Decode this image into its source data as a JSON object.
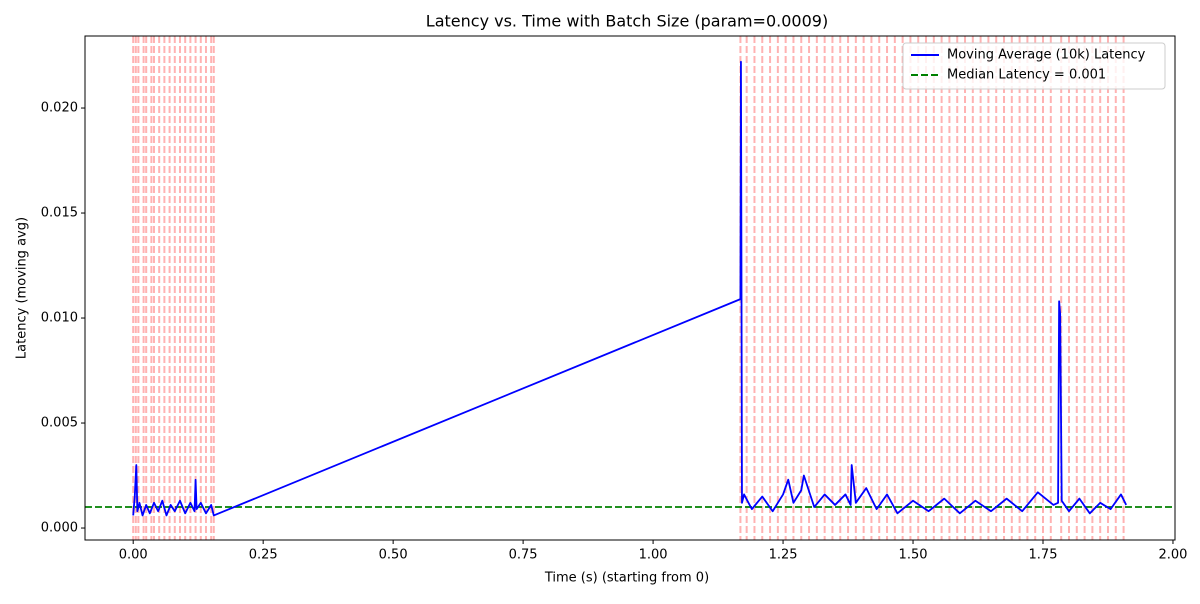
{
  "chart_data": {
    "type": "line",
    "title": "Latency vs. Time with Batch Size (param=0.0009)",
    "xlabel": "Time (s) (starting from 0)",
    "ylabel": "Latency (moving avg)",
    "xlim": [
      -0.0927,
      2.0039
    ],
    "ylim": [
      -0.00057,
      0.02343
    ],
    "xticks": [
      {
        "value": 0,
        "label": "0.00"
      },
      {
        "value": 0.25,
        "label": "0.25"
      },
      {
        "value": 0.5,
        "label": "0.50"
      },
      {
        "value": 0.75,
        "label": "0.75"
      },
      {
        "value": 1,
        "label": "1.00"
      },
      {
        "value": 1.25,
        "label": "1.25"
      },
      {
        "value": 1.5,
        "label": "1.50"
      },
      {
        "value": 1.75,
        "label": "1.75"
      },
      {
        "value": 2,
        "label": "2.00"
      }
    ],
    "yticks": [
      {
        "value": 0,
        "label": "0.000"
      },
      {
        "value": 0.005,
        "label": "0.005"
      },
      {
        "value": 0.01,
        "label": "0.010"
      },
      {
        "value": 0.015,
        "label": "0.015"
      },
      {
        "value": 0.02,
        "label": "0.020"
      }
    ],
    "legend": "upper right",
    "series": [
      {
        "name": "Moving Average (10k) Latency",
        "color": "#0000ff",
        "x": [
          0.0,
          0.003,
          0.006,
          0.008,
          0.012,
          0.018,
          0.025,
          0.032,
          0.04,
          0.048,
          0.056,
          0.064,
          0.072,
          0.08,
          0.09,
          0.1,
          0.11,
          0.118,
          0.12,
          0.122,
          0.13,
          0.14,
          0.15,
          0.155,
          1.168,
          1.169,
          1.17,
          1.171,
          1.175,
          1.19,
          1.21,
          1.23,
          1.25,
          1.26,
          1.27,
          1.285,
          1.29,
          1.31,
          1.33,
          1.35,
          1.37,
          1.38,
          1.382,
          1.39,
          1.41,
          1.43,
          1.45,
          1.47,
          1.5,
          1.53,
          1.56,
          1.59,
          1.62,
          1.65,
          1.68,
          1.71,
          1.74,
          1.77,
          1.779,
          1.781,
          1.783,
          1.786,
          1.8,
          1.82,
          1.84,
          1.86,
          1.88,
          1.9,
          1.91
        ],
        "values": [
          0.0006,
          0.0015,
          0.003,
          0.0008,
          0.0012,
          0.0006,
          0.0011,
          0.0007,
          0.0012,
          0.0008,
          0.0013,
          0.0006,
          0.0011,
          0.0008,
          0.0013,
          0.0007,
          0.0012,
          0.0008,
          0.0023,
          0.0009,
          0.0012,
          0.0007,
          0.0011,
          0.0006,
          0.0109,
          0.0222,
          0.0123,
          0.0012,
          0.0016,
          0.0009,
          0.0015,
          0.0008,
          0.0016,
          0.0023,
          0.0012,
          0.0018,
          0.0025,
          0.001,
          0.0016,
          0.0011,
          0.0016,
          0.0011,
          0.003,
          0.0012,
          0.0019,
          0.0009,
          0.0016,
          0.0007,
          0.0013,
          0.0008,
          0.0014,
          0.0007,
          0.0013,
          0.0008,
          0.0014,
          0.0008,
          0.0017,
          0.0011,
          0.0012,
          0.0108,
          0.0102,
          0.0013,
          0.0008,
          0.0014,
          0.0007,
          0.0012,
          0.0009,
          0.0016,
          0.0011
        ]
      }
    ],
    "hline": {
      "name": "Median Latency = 0.001",
      "value": 0.001,
      "color": "#008000"
    },
    "batch_lines": {
      "color": "#ff0000",
      "x": [
        0,
        0.005,
        0.01,
        0.02,
        0.025,
        0.035,
        0.04,
        0.05,
        0.06,
        0.07,
        0.08,
        0.09,
        0.1,
        0.11,
        0.12,
        0.13,
        0.14,
        0.15,
        0.155,
        1.168,
        1.18,
        1.195,
        1.21,
        1.225,
        1.24,
        1.255,
        1.27,
        1.285,
        1.3,
        1.315,
        1.33,
        1.345,
        1.36,
        1.375,
        1.39,
        1.405,
        1.42,
        1.435,
        1.45,
        1.465,
        1.48,
        1.495,
        1.51,
        1.525,
        1.54,
        1.555,
        1.57,
        1.585,
        1.6,
        1.615,
        1.63,
        1.645,
        1.66,
        1.675,
        1.69,
        1.705,
        1.72,
        1.735,
        1.75,
        1.765,
        1.785,
        1.8,
        1.815,
        1.83,
        1.845,
        1.86,
        1.875,
        1.89,
        1.905
      ]
    }
  }
}
